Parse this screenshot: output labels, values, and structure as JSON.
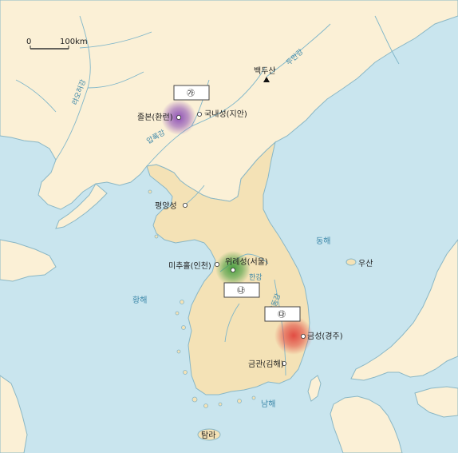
{
  "scale": {
    "zero": "0",
    "distance": "100km"
  },
  "peak": {
    "name": "백두산"
  },
  "rivers": {
    "liao": "랴오허강",
    "yalu": "압록강",
    "tumen": "두만강",
    "han": "한강",
    "nakdong": "낙동강"
  },
  "seas": {
    "yellow": "황해",
    "east": "동해",
    "south": "남해"
  },
  "cities": {
    "jolbon": "졸본(환런)",
    "gungnae": "국내성(지안)",
    "pyongyang": "평양성",
    "michuhol": "미추홀(인천)",
    "wiryeseong": "위례성(서울)",
    "geumseong": "금성(경주)",
    "geumgwan": "금관(김해)"
  },
  "islands": {
    "usan": "우산",
    "tamna": "탐라"
  },
  "boxes": {
    "ga": "㉮",
    "na": "㉯",
    "da": "㉰"
  },
  "colors": {
    "sea": "#c9e5ee",
    "land": "#fbf0d6",
    "peninsula": "#f4e2b6",
    "coast": "#8ab7c5",
    "purple": "#8a4bb5",
    "green": "#3f9a3a",
    "red": "#e0443c"
  }
}
